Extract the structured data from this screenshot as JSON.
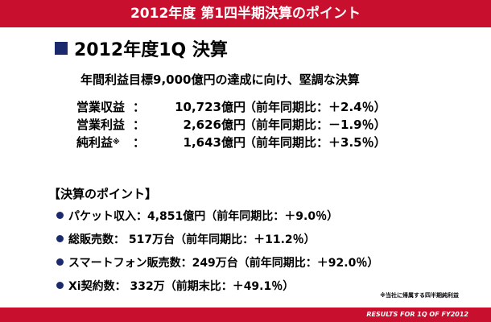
{
  "header": {
    "title": "2012年度 第1四半期決算のポイント"
  },
  "section": {
    "heading": "2012年度1Q 決算",
    "summary": "年間利益目標9,000億円の達成に向け、堅調な決算"
  },
  "results": [
    {
      "label": "営業収益",
      "sep": "：",
      "amount": "10,723億円",
      "change": "（前年同期比：＋2.4％）"
    },
    {
      "label": "営業利益",
      "sep": "：",
      "amount": "2,626億円",
      "change": "（前年同期比：－1.9％）"
    },
    {
      "label": "純利益",
      "note": "※",
      "sep": "：",
      "amount": "1,643億円",
      "change": "（前年同期比：＋3.5％）"
    }
  ],
  "points": {
    "heading": "【決算のポイント】",
    "items": [
      "パケット収入：4,851億円（前年同期比：＋9.0％）",
      "総販売数： 517万台（前年同期比：＋11.2％）",
      "スマートフォン販売数：249万台（前年同期比：＋92.0％）",
      "Xi契約数： 332万（前期末比：＋49.1％）"
    ]
  },
  "footnote": "※当社に帰属する四半期純利益",
  "footer": "RESULTS FOR 1Q OF FY2012"
}
